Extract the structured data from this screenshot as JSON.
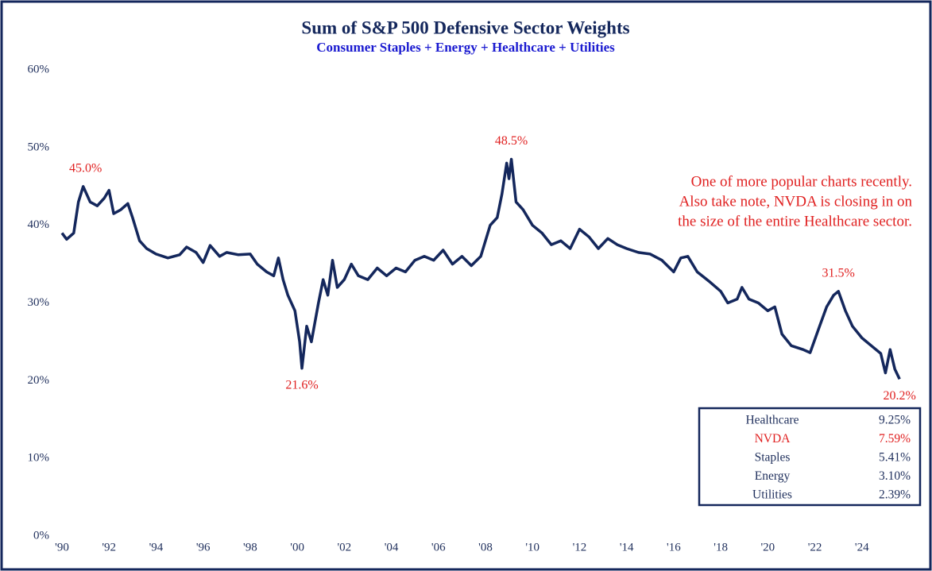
{
  "chart_data": {
    "type": "line",
    "title": "Sum of S&P 500 Defensive Sector Weights",
    "subtitle": "Consumer Staples + Energy + Healthcare + Utilities",
    "color": "#14275c",
    "xlim": [
      1990,
      2026
    ],
    "xticks": [
      {
        "value": 1990,
        "label": "'90"
      },
      {
        "value": 1992,
        "label": "'92"
      },
      {
        "value": 1994,
        "label": "'94"
      },
      {
        "value": 1996,
        "label": "'96"
      },
      {
        "value": 1998,
        "label": "'98"
      },
      {
        "value": 2000,
        "label": "'00"
      },
      {
        "value": 2002,
        "label": "'02"
      },
      {
        "value": 2004,
        "label": "'04"
      },
      {
        "value": 2006,
        "label": "'06"
      },
      {
        "value": 2008,
        "label": "'08"
      },
      {
        "value": 2010,
        "label": "'10"
      },
      {
        "value": 2012,
        "label": "'12"
      },
      {
        "value": 2014,
        "label": "'14"
      },
      {
        "value": 2016,
        "label": "'16"
      },
      {
        "value": 2018,
        "label": "'18"
      },
      {
        "value": 2020,
        "label": "'20"
      },
      {
        "value": 2022,
        "label": "'22"
      },
      {
        "value": 2024,
        "label": "'24"
      }
    ],
    "ylim": [
      0,
      60
    ],
    "yticks": [
      {
        "value": 0,
        "label": "0%"
      },
      {
        "value": 10,
        "label": "10%"
      },
      {
        "value": 20,
        "label": "20%"
      },
      {
        "value": 30,
        "label": "30%"
      },
      {
        "value": 40,
        "label": "40%"
      },
      {
        "value": 50,
        "label": "50%"
      },
      {
        "value": 60,
        "label": "60%"
      }
    ],
    "x": [
      1990.0,
      1990.2,
      1990.5,
      1990.7,
      1990.9,
      1991.2,
      1991.5,
      1991.8,
      1992.0,
      1992.2,
      1992.5,
      1992.8,
      1993.0,
      1993.3,
      1993.6,
      1994.0,
      1994.5,
      1995.0,
      1995.3,
      1995.7,
      1996.0,
      1996.3,
      1996.7,
      1997.0,
      1997.5,
      1998.0,
      1998.3,
      1998.7,
      1999.0,
      1999.2,
      1999.4,
      1999.6,
      1999.9,
      2000.1,
      2000.2,
      2000.4,
      2000.6,
      2000.9,
      2001.1,
      2001.3,
      2001.5,
      2001.7,
      2002.0,
      2002.3,
      2002.6,
      2003.0,
      2003.4,
      2003.8,
      2004.2,
      2004.6,
      2005.0,
      2005.4,
      2005.8,
      2006.2,
      2006.6,
      2007.0,
      2007.4,
      2007.8,
      2008.0,
      2008.2,
      2008.5,
      2008.7,
      2008.9,
      2009.0,
      2009.1,
      2009.3,
      2009.6,
      2010.0,
      2010.4,
      2010.8,
      2011.2,
      2011.6,
      2012.0,
      2012.4,
      2012.8,
      2013.2,
      2013.6,
      2014.0,
      2014.5,
      2015.0,
      2015.5,
      2016.0,
      2016.3,
      2016.6,
      2017.0,
      2017.5,
      2018.0,
      2018.3,
      2018.7,
      2018.9,
      2019.2,
      2019.6,
      2020.0,
      2020.3,
      2020.6,
      2021.0,
      2021.5,
      2021.8,
      2022.2,
      2022.5,
      2022.8,
      2023.0,
      2023.3,
      2023.6,
      2024.0,
      2024.4,
      2024.8,
      2025.0,
      2025.2,
      2025.4,
      2025.6
    ],
    "values": [
      39,
      38.2,
      39,
      43,
      45,
      43,
      42.5,
      43.5,
      44.5,
      41.5,
      42,
      42.8,
      41,
      38,
      37,
      36.3,
      35.8,
      36.2,
      37.2,
      36.5,
      35.2,
      37.4,
      36,
      36.5,
      36.2,
      36.3,
      35,
      34,
      33.5,
      35.8,
      33,
      31,
      29,
      25,
      21.6,
      27,
      25,
      30,
      33,
      31,
      35.5,
      32,
      33,
      35,
      33.5,
      33,
      34.5,
      33.5,
      34.5,
      34,
      35.5,
      36,
      35.5,
      36.8,
      35,
      36,
      34.8,
      36,
      38,
      40,
      41,
      44,
      48,
      46,
      48.5,
      43,
      42,
      40,
      39,
      37.5,
      38,
      37,
      39.5,
      38.5,
      37,
      38.3,
      37.5,
      37,
      36.5,
      36.3,
      35.5,
      34,
      35.8,
      36,
      34,
      32.8,
      31.5,
      30,
      30.5,
      32,
      30.5,
      30,
      29,
      29.5,
      26,
      24.5,
      24,
      23.6,
      27,
      29.5,
      31,
      31.5,
      29,
      27,
      25.5,
      24.5,
      23.5,
      21,
      24,
      21.5,
      20.2
    ],
    "annotations": [
      {
        "x": 1991.0,
        "y": 45.0,
        "label": "45.0%"
      },
      {
        "x": 2000.2,
        "y": 21.6,
        "label": "21.6%"
      },
      {
        "x": 2009.1,
        "y": 48.5,
        "label": "48.5%"
      },
      {
        "x": 2023.0,
        "y": 31.5,
        "label": "31.5%"
      },
      {
        "x": 2025.6,
        "y": 20.2,
        "label": "20.2%"
      }
    ],
    "note": [
      "One of more popular charts recently.",
      "Also take note, NVDA is closing in on",
      "the size of the entire Healthcare sector."
    ],
    "table": [
      {
        "name": "Healthcare",
        "value": "9.25%",
        "color": "#1f2f5c"
      },
      {
        "name": "NVDA",
        "value": "7.59%",
        "color": "#e02020"
      },
      {
        "name": "Staples",
        "value": "5.41%",
        "color": "#1f2f5c"
      },
      {
        "name": "Energy",
        "value": "3.10%",
        "color": "#1f2f5c"
      },
      {
        "name": "Utilities",
        "value": "2.39%",
        "color": "#1f2f5c"
      }
    ]
  }
}
